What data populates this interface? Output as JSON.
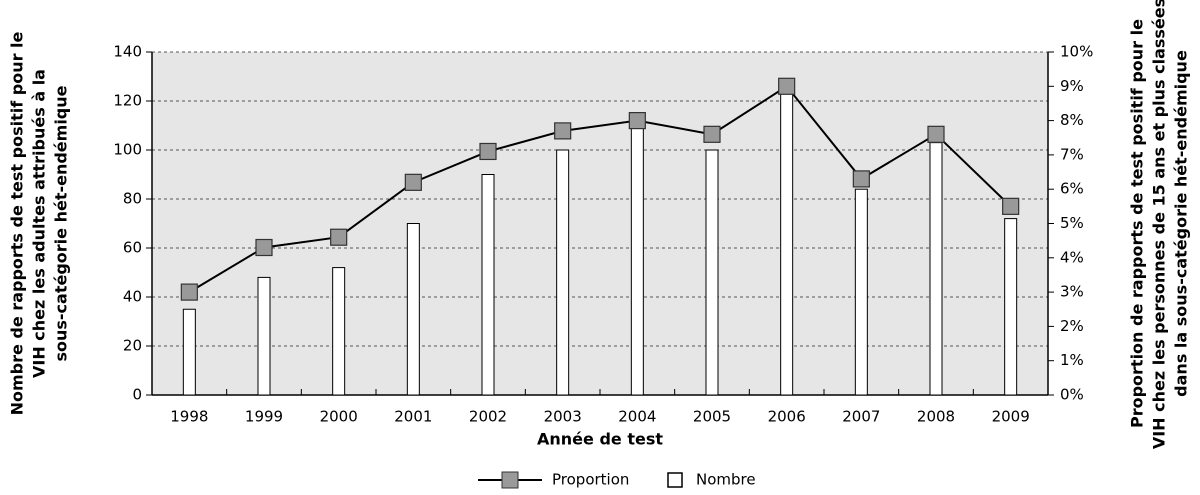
{
  "chart_data": {
    "type": "bar_line",
    "categories": [
      "1998",
      "1999",
      "2000",
      "2001",
      "2002",
      "2003",
      "2004",
      "2005",
      "2006",
      "2007",
      "2008",
      "2009"
    ],
    "series": [
      {
        "name": "Proportion",
        "type": "line",
        "axis": "y2",
        "color": "#000000",
        "marker_color": "#999999",
        "values": [
          3.0,
          4.3,
          4.6,
          6.2,
          7.1,
          7.7,
          8.0,
          7.6,
          9.0,
          6.3,
          7.6,
          5.5
        ]
      },
      {
        "name": "Nombre",
        "type": "bar",
        "color": "#ffffff",
        "values": [
          35,
          48,
          52,
          70,
          90,
          100,
          112,
          100,
          125,
          84,
          103,
          72
        ]
      }
    ],
    "xlabel": "Année de test",
    "ylabel": [
      "Nombre de rapports de test positif pour le",
      "VIH chez les adultes attribués à la",
      "sous-catégorie hét-endémique"
    ],
    "y2label": [
      "Proportion de rapports de test positif pour le",
      "VIH chez les personnes de 15 ans et plus classées",
      "dans la sous-catégorie hét-endémique"
    ],
    "ylim": [
      0,
      140
    ],
    "yticks": [
      0,
      20,
      40,
      60,
      80,
      100,
      120,
      140
    ],
    "y2lim": [
      0,
      10
    ],
    "y2ticks": [
      {
        "value": 0,
        "label": "0%"
      },
      {
        "value": 1,
        "label": "1%"
      },
      {
        "value": 2,
        "label": "2%"
      },
      {
        "value": 3,
        "label": "3%"
      },
      {
        "value": 4,
        "label": "4%"
      },
      {
        "value": 5,
        "label": "5%"
      },
      {
        "value": 6,
        "label": "6%"
      },
      {
        "value": 7,
        "label": "7%"
      },
      {
        "value": 8,
        "label": "8%"
      },
      {
        "value": 9,
        "label": "9%"
      },
      {
        "value": 10,
        "label": "10%"
      }
    ],
    "grid": true,
    "legend": "bottom"
  }
}
